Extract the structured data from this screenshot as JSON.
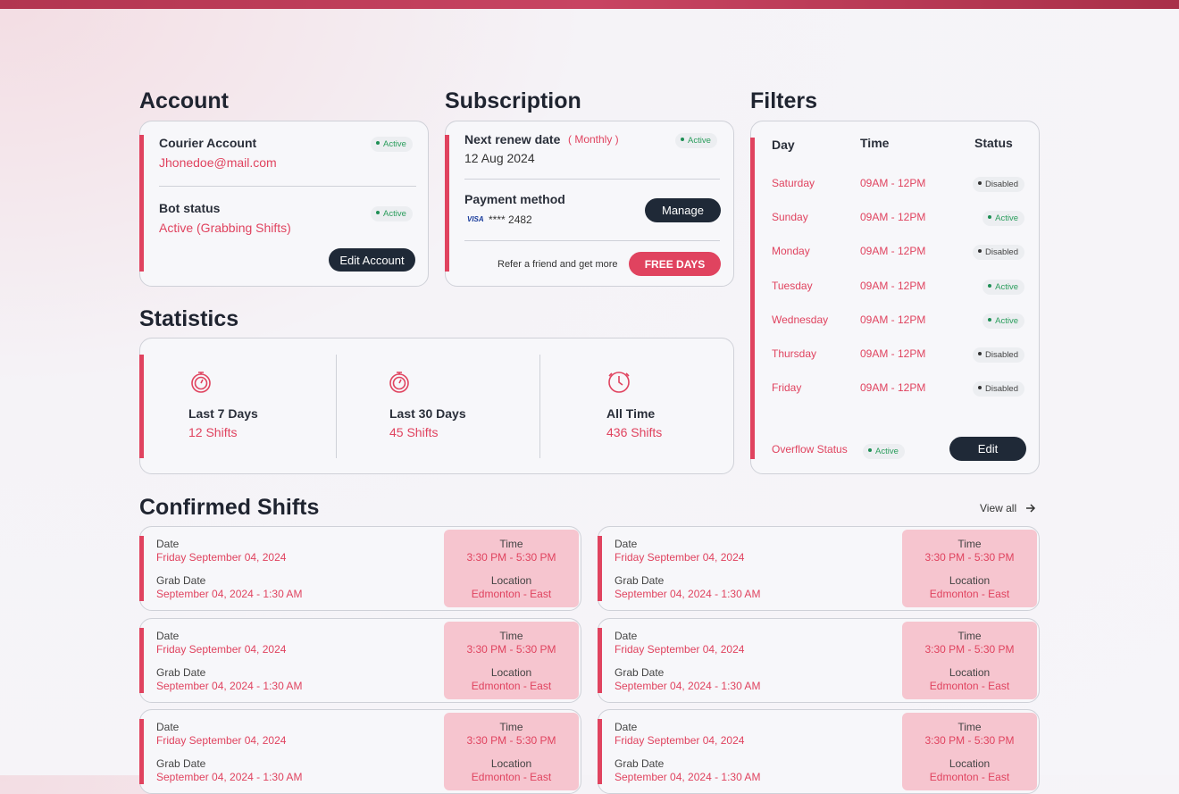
{
  "account": {
    "title": "Account",
    "courier_label": "Courier Account",
    "courier_status": "Active",
    "email": "Jhonedoe@mail.com",
    "bot_label": "Bot status",
    "bot_status": "Active",
    "bot_value": "Active (Grabbing Shifts)",
    "button": "Edit Account"
  },
  "subscription": {
    "title": "Subscription",
    "renew_label": "Next renew date",
    "renew_period": "( Monthly )",
    "status": "Active",
    "renew_date": "12 Aug 2024",
    "payment_label": "Payment method",
    "card_brand": "VISA",
    "card_number": "**** 2482",
    "manage_button": "Manage",
    "refer_text": "Refer a friend and get more",
    "refer_button": "FREE DAYS"
  },
  "filters": {
    "title": "Filters",
    "headers": [
      "Day",
      "Time",
      "Status"
    ],
    "rows": [
      [
        "Saturday",
        "09AM - 12PM",
        "Disabled"
      ],
      [
        "Sunday",
        "09AM - 12PM",
        "Active"
      ],
      [
        "Monday",
        "09AM - 12PM",
        "Disabled"
      ],
      [
        "Tuesday",
        "09AM - 12PM",
        "Active"
      ],
      [
        "Wednesday",
        "09AM - 12PM",
        "Active"
      ],
      [
        "Thursday",
        "09AM - 12PM",
        "Disabled"
      ],
      [
        "Friday",
        "09AM - 12PM",
        "Disabled"
      ]
    ],
    "overflow_label": "Overflow Status",
    "overflow_status": "Active",
    "button": "Edit"
  },
  "statistics": {
    "title": "Statistics",
    "items": [
      {
        "label": "Last 7 Days",
        "value": "12 Shifts"
      },
      {
        "label": "Last 30 Days",
        "value": "45 Shifts"
      },
      {
        "label": "All Time",
        "value": "436 Shifts"
      }
    ]
  },
  "shifts": {
    "title": "Confirmed Shifts",
    "view_all": "View all",
    "items": [
      {
        "date_label": "Date",
        "date": "Friday September 04, 2024",
        "grab_label": "Grab Date",
        "grab_date": "September 04, 2024 - 1:30 AM",
        "time_label": "Time",
        "time": "3:30 PM - 5:30 PM",
        "location_label": "Location",
        "location": "Edmonton - East"
      },
      {
        "date_label": "Date",
        "date": "Friday September 04, 2024",
        "grab_label": "Grab Date",
        "grab_date": "September 04, 2024 - 1:30 AM",
        "time_label": "Time",
        "time": "3:30 PM - 5:30 PM",
        "location_label": "Location",
        "location": "Edmonton - East"
      },
      {
        "date_label": "Date",
        "date": "Friday September 04, 2024",
        "grab_label": "Grab Date",
        "grab_date": "September 04, 2024 - 1:30 AM",
        "time_label": "Time",
        "time": "3:30 PM - 5:30 PM",
        "location_label": "Location",
        "location": "Edmonton - East"
      },
      {
        "date_label": "Date",
        "date": "Friday September 04, 2024",
        "grab_label": "Grab Date",
        "grab_date": "September 04, 2024 - 1:30 AM",
        "time_label": "Time",
        "time": "3:30 PM - 5:30 PM",
        "location_label": "Location",
        "location": "Edmonton - East"
      },
      {
        "date_label": "Date",
        "date": "Friday September 04, 2024",
        "grab_label": "Grab Date",
        "grab_date": "September 04, 2024 - 1:30 AM",
        "time_label": "Time",
        "time": "3:30 PM - 5:30 PM",
        "location_label": "Location",
        "location": "Edmonton - East"
      },
      {
        "date_label": "Date",
        "date": "Friday September 04, 2024",
        "grab_label": "Grab Date",
        "grab_date": "September 04, 2024 - 1:30 AM",
        "time_label": "Time",
        "time": "3:30 PM - 5:30 PM",
        "location_label": "Location",
        "location": "Edmonton - East"
      }
    ]
  }
}
